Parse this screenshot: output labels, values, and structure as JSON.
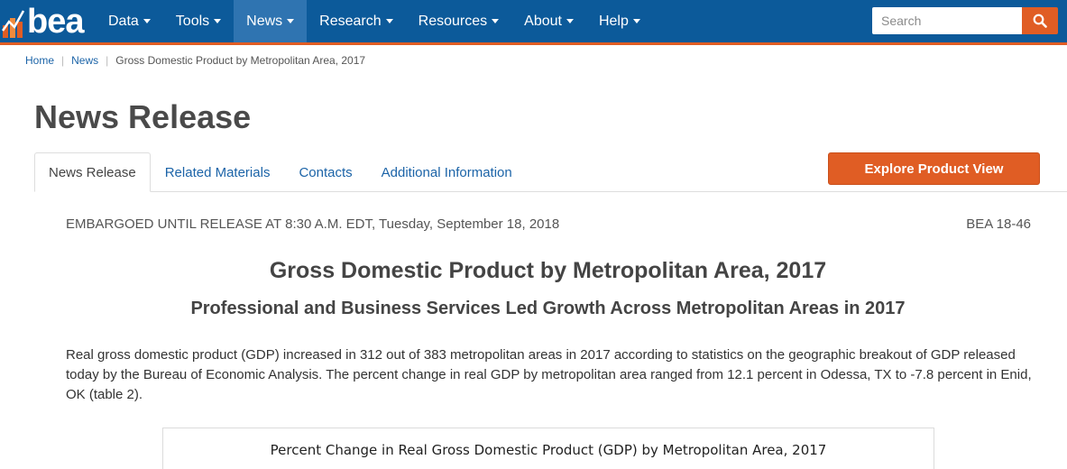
{
  "brand": {
    "logo_text": "bea",
    "logo_icon": "bar-chart-logo-icon",
    "colors": {
      "nav_bg": "#0c5a9a",
      "nav_active": "#2f74b1",
      "accent": "#e05d24",
      "link": "#1c64a8"
    }
  },
  "nav": {
    "items": [
      {
        "label": "Data"
      },
      {
        "label": "Tools"
      },
      {
        "label": "News",
        "active": true
      },
      {
        "label": "Research"
      },
      {
        "label": "Resources"
      },
      {
        "label": "About"
      },
      {
        "label": "Help"
      }
    ]
  },
  "search": {
    "placeholder": "Search",
    "value": "",
    "icon": "search-icon"
  },
  "breadcrumb": {
    "items": [
      {
        "label": "Home",
        "link": true
      },
      {
        "label": "News",
        "link": true
      },
      {
        "label": "Gross Domestic Product by Metropolitan Area, 2017",
        "link": false
      }
    ]
  },
  "page": {
    "title": "News Release"
  },
  "tabs": {
    "items": [
      {
        "label": "News Release",
        "active": true
      },
      {
        "label": "Related Materials"
      },
      {
        "label": "Contacts"
      },
      {
        "label": "Additional Information"
      }
    ],
    "explore_label": "Explore Product View"
  },
  "release": {
    "embargo": "EMBARGOED UNTIL RELEASE AT 8:30 A.M. EDT, Tuesday, September 18, 2018",
    "number": "BEA 18-46",
    "title": "Gross Domestic Product by Metropolitan Area, 2017",
    "subtitle": "Professional and Business Services Led Growth Across Metropolitan Areas in 2017",
    "body": "Real gross domestic product (GDP) increased in 312 out of 383 metropolitan areas in 2017 according to statistics on the geographic breakout of GDP released today by the Bureau of Economic Analysis. The percent change in real GDP by metropolitan area ranged from 12.1 percent in Odessa, TX to -7.8 percent in Enid, OK (table 2)."
  },
  "figure": {
    "title": "Percent Change in Real Gross Domestic Product (GDP) by Metropolitan Area, 2017"
  }
}
